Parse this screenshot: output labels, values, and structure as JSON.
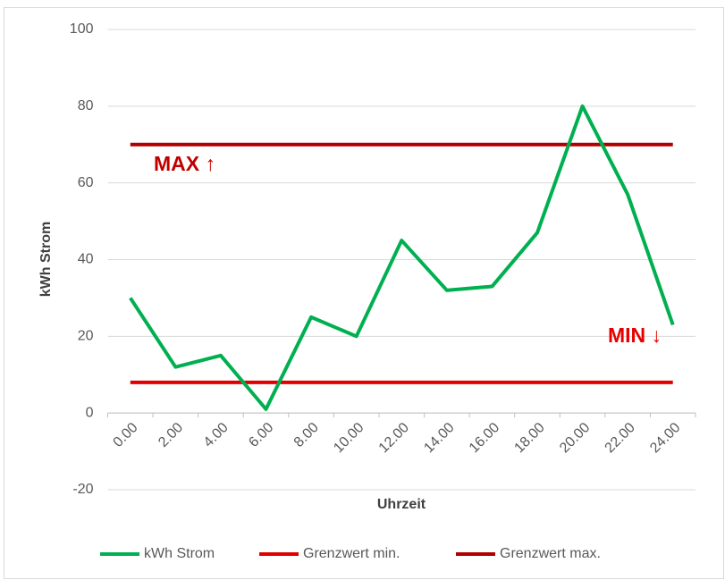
{
  "chart_data": {
    "type": "line",
    "x_label": "Uhrzeit",
    "y_label": "kWh Strom",
    "categories": [
      "0.00",
      "2.00",
      "4.00",
      "6.00",
      "8.00",
      "10.00",
      "12.00",
      "14.00",
      "16.00",
      "18.00",
      "20.00",
      "22.00",
      "24.00"
    ],
    "series": [
      {
        "name": "kWh Strom",
        "color": "#00b050",
        "values": [
          30,
          12,
          15,
          1,
          25,
          20,
          45,
          32,
          33,
          47,
          80,
          57,
          23
        ]
      },
      {
        "name": "Grenzwert min.",
        "color": "#e00000",
        "values": [
          8,
          8,
          8,
          8,
          8,
          8,
          8,
          8,
          8,
          8,
          8,
          8,
          8
        ]
      },
      {
        "name": "Grenzwert max.",
        "color": "#b00000",
        "values": [
          70,
          70,
          70,
          70,
          70,
          70,
          70,
          70,
          70,
          70,
          70,
          70,
          70
        ]
      }
    ],
    "annotations": [
      {
        "text": "MAX ↑",
        "color": "#c00000"
      },
      {
        "text": "MIN ↓",
        "color": "#e80000"
      }
    ],
    "ylim": [
      -20,
      100
    ],
    "yticks": [
      -20,
      0,
      20,
      40,
      60,
      80,
      100
    ],
    "grid": true,
    "legend": "bottom"
  }
}
